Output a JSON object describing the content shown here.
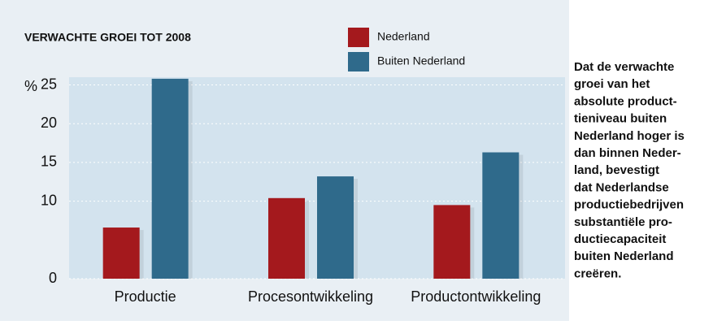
{
  "chart_data": {
    "type": "bar",
    "title": "VERWACHTE GROEI TOT 2008",
    "y_unit": "%",
    "categories": [
      "Productie",
      "Procesontwikkeling",
      "Productontwikkeling"
    ],
    "series": [
      {
        "name": "Nederland",
        "color": "#a4191d",
        "values": [
          6.6,
          10.4,
          9.5
        ]
      },
      {
        "name": "Buiten Nederland",
        "color": "#2f6a8b",
        "values": [
          25.8,
          13.2,
          16.3
        ]
      }
    ],
    "ylim": [
      0,
      26
    ],
    "yticks": [
      0,
      10,
      15,
      20,
      25
    ],
    "grid": true
  },
  "sidebar": {
    "lines": [
      "Dat de verwachte",
      "groei van het",
      "absolute product-",
      "tieniveau buiten",
      "Nederland hoger is",
      "dan binnen Neder-",
      "land, bevestigt",
      "dat Nederlandse",
      "productiebedrijven",
      "substantiële pro-",
      "ductiecapaciteit",
      "buiten Nederland",
      "creëren."
    ]
  }
}
